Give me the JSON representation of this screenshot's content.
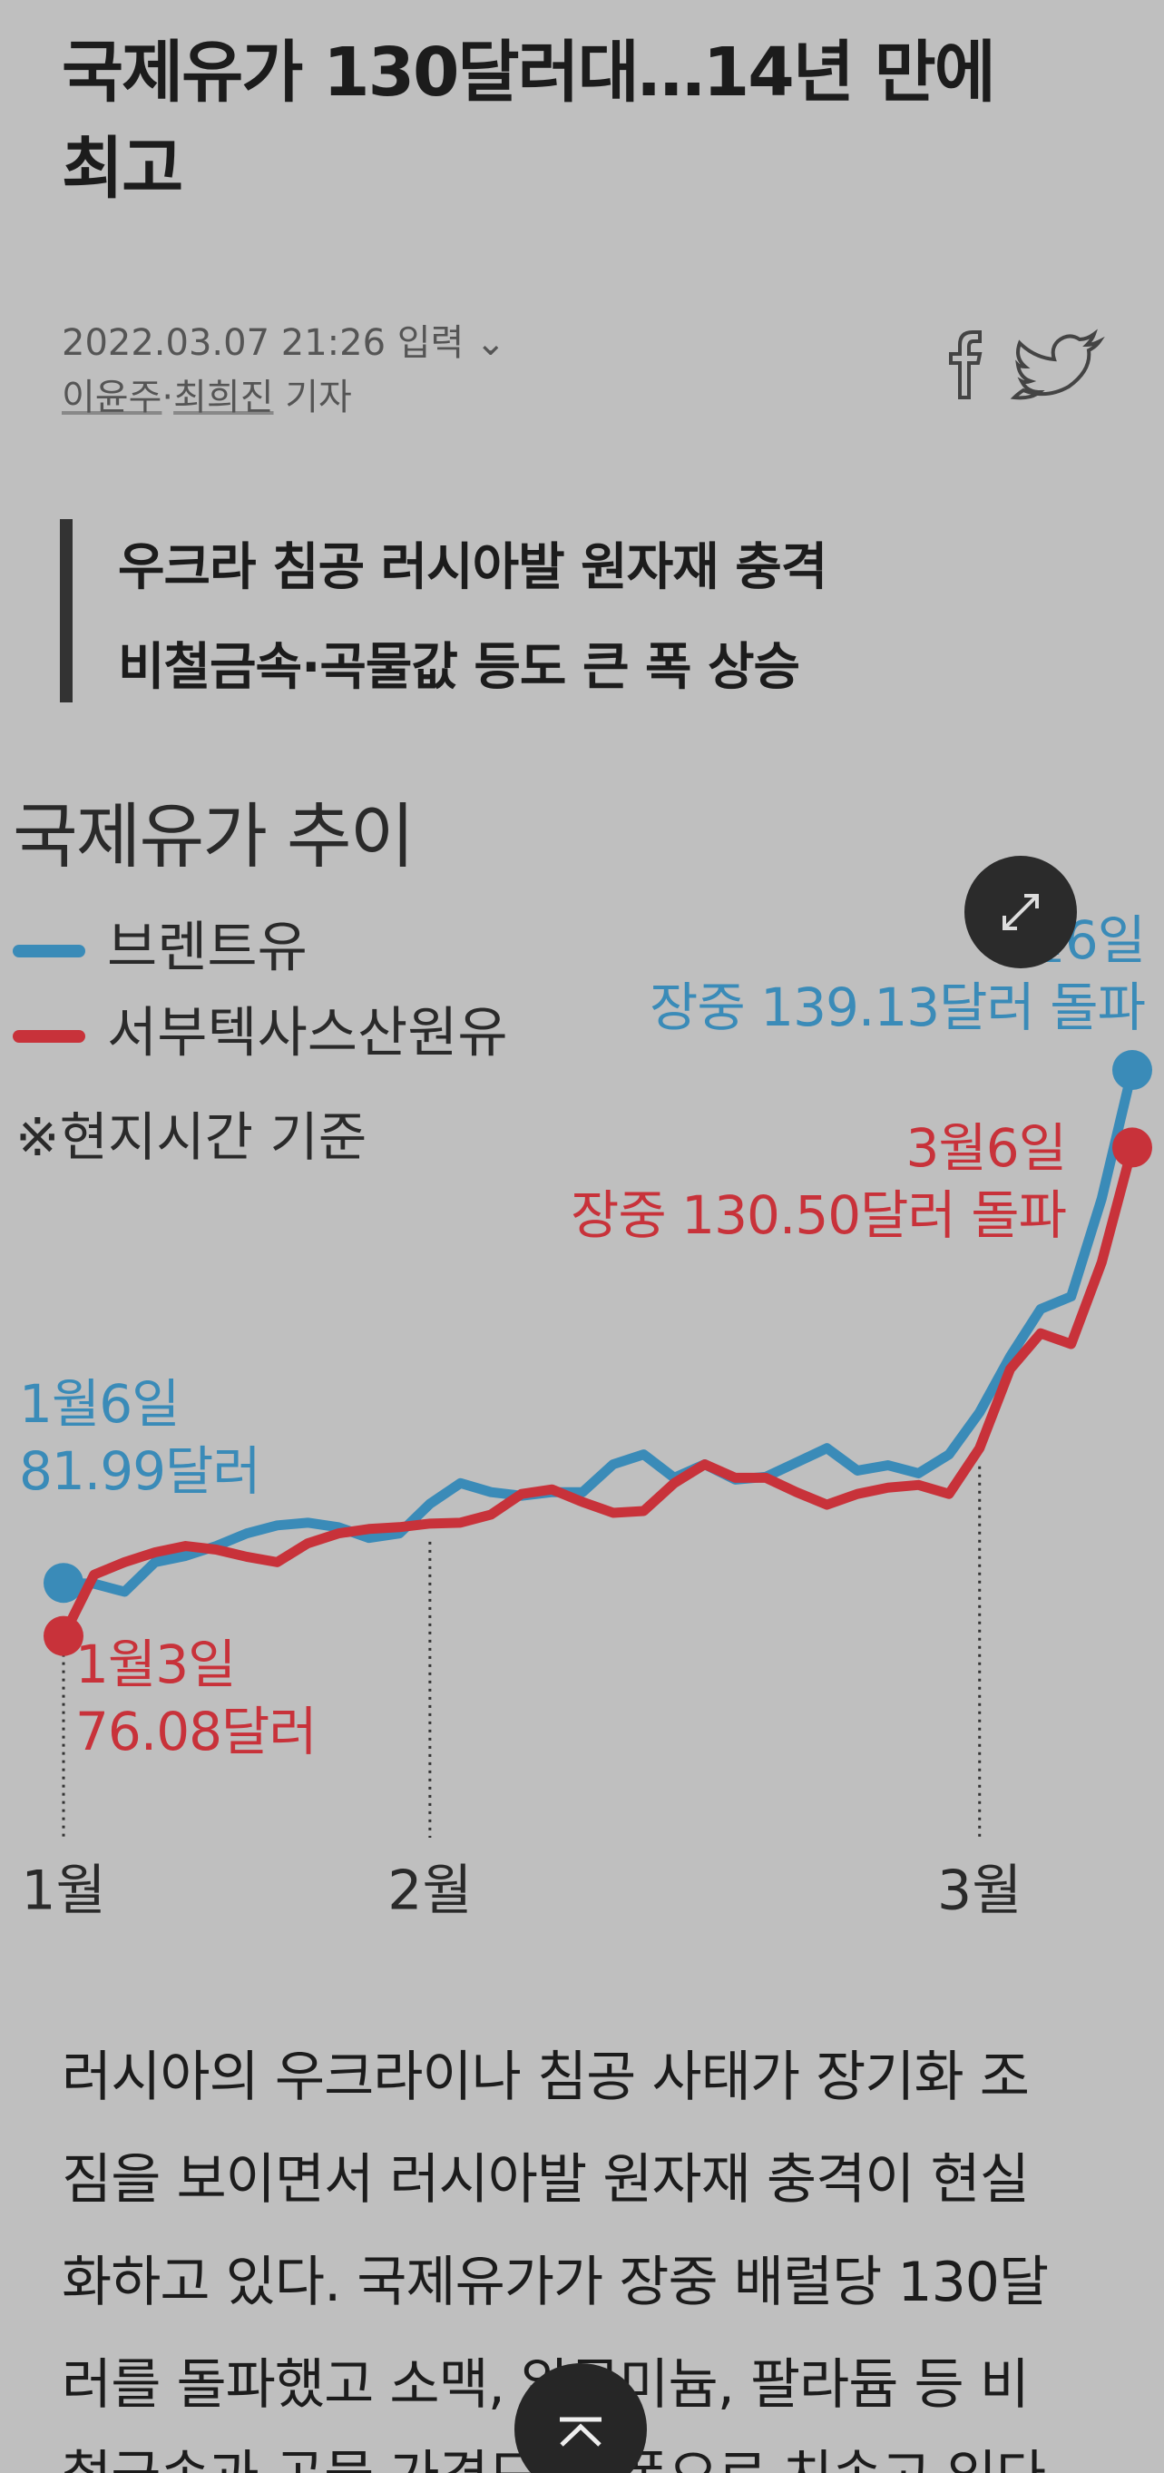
{
  "header": {
    "title_lines": [
      "국제유가 130달러대…14년 만에",
      "최고"
    ],
    "date": "2022.03.07 21:26 입력",
    "authors": [
      "이윤주",
      "최희진"
    ],
    "author_suffix": "기자"
  },
  "summary": [
    "우크라 침공 러시아발 원자재 충격",
    "비철금속·곡물값 등도 큰 폭 상승"
  ],
  "chart_data": {
    "type": "line",
    "title": "국제유가 추이",
    "note": "※현지시간 기준",
    "categories": [
      "1월",
      null,
      null,
      null,
      null,
      null,
      null,
      null,
      null,
      null,
      null,
      null,
      "2월",
      null,
      null,
      null,
      null,
      null,
      null,
      null,
      null,
      null,
      null,
      null,
      null,
      null,
      null,
      null,
      null,
      null,
      "3월",
      null,
      null,
      null,
      null,
      null
    ],
    "ylim": [
      53.6,
      163.4
    ],
    "series": [
      {
        "name": "브렌트유",
        "color": "#3a8bb8",
        "values": [
          81.99,
          81.9,
          81.0,
          84.3,
          85.0,
          86.1,
          87.5,
          88.4,
          88.7,
          88.2,
          87.0,
          87.5,
          90.8,
          93.1,
          92.1,
          91.7,
          92.1,
          92.1,
          95.2,
          96.3,
          93.7,
          95.2,
          93.5,
          93.8,
          95.4,
          97.0,
          94.5,
          95.1,
          94.2,
          96.3,
          101.0,
          107.2,
          112.5,
          113.9,
          124.8,
          139.13
        ]
      },
      {
        "name": "서부텍사스산원유",
        "color": "#c8323a",
        "values": [
          76.08,
          82.9,
          84.3,
          85.4,
          86.1,
          85.7,
          84.9,
          84.3,
          86.4,
          87.5,
          88.0,
          88.2,
          88.6,
          88.7,
          89.6,
          91.9,
          92.4,
          91.0,
          89.8,
          90.0,
          93.1,
          95.2,
          93.7,
          93.7,
          92.1,
          90.7,
          91.9,
          92.6,
          92.9,
          91.9,
          97.0,
          105.8,
          109.8,
          108.6,
          117.7,
          130.5
        ]
      }
    ],
    "annotations": [
      {
        "color": "#3a8bb8",
        "lines": [
          "1월6일",
          "81.99달러"
        ]
      },
      {
        "color": "#c8323a",
        "lines": [
          "1월3일",
          "76.08달러"
        ]
      },
      {
        "color": "#3a8bb8",
        "lines": [
          "3월6일",
          "장중 139.13달러 돌파"
        ]
      },
      {
        "color": "#c8323a",
        "lines": [
          "3월6일",
          "장중 130.50달러 돌파"
        ]
      }
    ]
  },
  "body": [
    "러시아의 우크라이나 침공 사태가 장기화 조",
    "짐을 보이면서 러시아발 원자재 충격이 현실",
    "화하고 있다. 국제유가가 장중 배럴당 130달",
    "러를 돌파했고 소맥, 알루미늄, 팔라듐 등 비",
    "철금속과 곡물 가격도 큰 폭으로 치솟고 있다"
  ]
}
